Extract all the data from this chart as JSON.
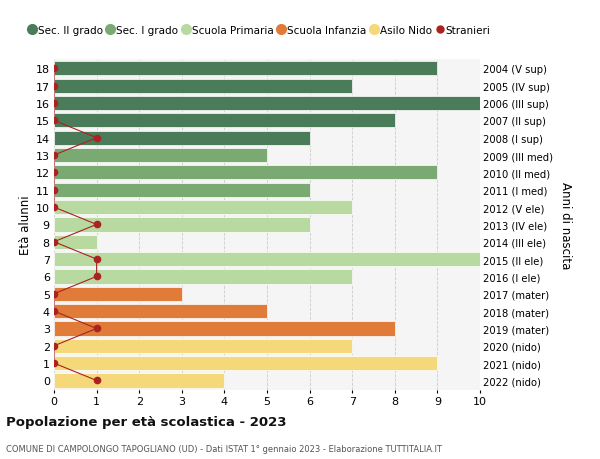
{
  "ages": [
    18,
    17,
    16,
    15,
    14,
    13,
    12,
    11,
    10,
    9,
    8,
    7,
    6,
    5,
    4,
    3,
    2,
    1,
    0
  ],
  "years": [
    "2004 (V sup)",
    "2005 (IV sup)",
    "2006 (III sup)",
    "2007 (II sup)",
    "2008 (I sup)",
    "2009 (III med)",
    "2010 (II med)",
    "2011 (I med)",
    "2012 (V ele)",
    "2013 (IV ele)",
    "2014 (III ele)",
    "2015 (II ele)",
    "2016 (I ele)",
    "2017 (mater)",
    "2018 (mater)",
    "2019 (mater)",
    "2020 (nido)",
    "2021 (nido)",
    "2022 (nido)"
  ],
  "values": [
    9,
    7,
    10,
    8,
    6,
    5,
    9,
    6,
    7,
    6,
    1,
    10,
    7,
    3,
    5,
    8,
    7,
    9,
    4
  ],
  "stranieri_x": [
    0,
    0,
    0,
    0,
    1,
    0,
    0,
    0,
    0,
    1,
    0,
    1,
    1,
    0,
    0,
    1,
    0,
    0,
    1
  ],
  "bar_colors": [
    "#4a7c59",
    "#4a7c59",
    "#4a7c59",
    "#4a7c59",
    "#4a7c59",
    "#7aaa72",
    "#7aaa72",
    "#7aaa72",
    "#b8d9a0",
    "#b8d9a0",
    "#b8d9a0",
    "#b8d9a0",
    "#b8d9a0",
    "#e07b39",
    "#e07b39",
    "#e07b39",
    "#f5d87a",
    "#f5d87a",
    "#f5d87a"
  ],
  "legend_labels": [
    "Sec. II grado",
    "Sec. I grado",
    "Scuola Primaria",
    "Scuola Infanzia",
    "Asilo Nido",
    "Stranieri"
  ],
  "legend_colors": [
    "#4a7c59",
    "#7aaa72",
    "#b8d9a0",
    "#e07b39",
    "#f5d87a",
    "#b22222"
  ],
  "title": "Popolazione per età scolastica - 2023",
  "subtitle": "COMUNE DI CAMPOLONGO TAPOGLIANO (UD) - Dati ISTAT 1° gennaio 2023 - Elaborazione TUTTITALIA.IT",
  "ylabel_left": "Età alunni",
  "ylabel_right": "Anni di nascita",
  "xlim": [
    0,
    10
  ],
  "xticks": [
    0,
    1,
    2,
    3,
    4,
    5,
    6,
    7,
    8,
    9,
    10
  ],
  "bg_color": "#ffffff",
  "plot_bg_color": "#f5f5f5",
  "grid_color": "#cccccc",
  "bar_height": 0.82,
  "stranieri_color": "#aa2222",
  "stranieri_markersize": 4.5,
  "stranieri_linewidth": 0.8
}
